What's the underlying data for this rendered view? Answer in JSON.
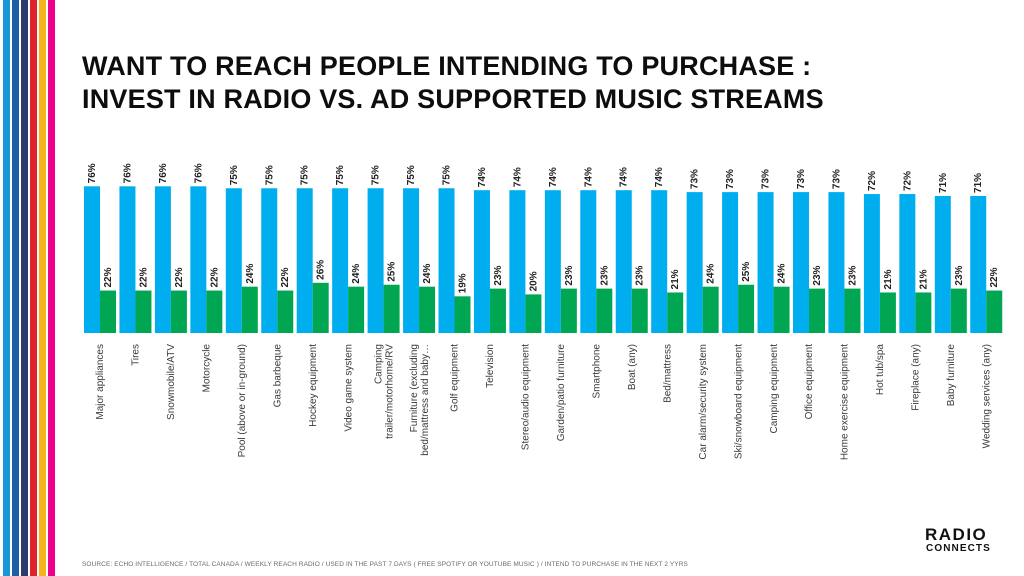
{
  "title": {
    "line1": "WANT TO REACH PEOPLE INTENDING TO PURCHASE :",
    "line2": "INVEST IN RADIO VS. AD SUPPORTED MUSIC STREAMS"
  },
  "source": "SOURCE: ECHO INTELLIGENCE / TOTAL CANADA / WEEKLY REACH RADIO / USED IN THE PAST 7 DAYS ( FREE SPOTIFY OR YOUTUBE MUSIC ) / INTEND TO PURCHASE IN THE NEXT 2 YYRS",
  "logo": {
    "line1": "RADIO",
    "line2": "CONNECTS"
  },
  "colors": {
    "radio": "#00AEEF",
    "streams": "#00A651",
    "stripes": [
      "#1798d6",
      "#1e5fa6",
      "#2e3b6e",
      "#e0232b",
      "#f7b21b",
      "#ec008c"
    ]
  },
  "chart_data": {
    "type": "bar",
    "title": "WANT TO REACH PEOPLE INTENDING TO PURCHASE : INVEST IN RADIO VS. AD SUPPORTED MUSIC STREAMS",
    "xlabel": "",
    "ylabel": "",
    "ylim": [
      0,
      100
    ],
    "grid": false,
    "legend": "none",
    "categories": [
      "Major appliances",
      "Tires",
      "Snowmobile/ATV",
      "Motorcycle",
      "Pool (above or in-ground)",
      "Gas barbeque",
      "Hockey equipment",
      "Video game system",
      [
        "Camping",
        "trailer/motorhome/RV"
      ],
      [
        "Furniture (excluding",
        "bed/mattress and baby…"
      ],
      "Golf equipment",
      "Television",
      "Stereo/audio equipment",
      "Garden/patio furniture",
      "Smartphone",
      "Boat (any)",
      "Bed/mattress",
      "Car alarm/security system",
      "Ski/snowboard equipment",
      "Camping equipment",
      "Office equipment",
      "Home exercise equipment",
      "Hot tub/spa",
      "Fireplace (any)",
      "Baby furniture",
      "Wedding services (any)"
    ],
    "series": [
      {
        "name": "Radio",
        "values": [
          76,
          76,
          76,
          76,
          75,
          75,
          75,
          75,
          75,
          75,
          75,
          74,
          74,
          74,
          74,
          74,
          74,
          73,
          73,
          73,
          73,
          73,
          72,
          72,
          71,
          71
        ],
        "labels": [
          "76%",
          "76%",
          "76%",
          "76%",
          "75%",
          "75%",
          "75%",
          "75%",
          "75%",
          "75%",
          "75%",
          "74%",
          "74%",
          "74%",
          "74%",
          "74%",
          "74%",
          "73%",
          "73%",
          "73%",
          "73%",
          "73%",
          "72%",
          "72%",
          "71%",
          "71%"
        ]
      },
      {
        "name": "Ad supported music streams",
        "values": [
          22,
          22,
          22,
          22,
          24,
          22,
          26,
          24,
          25,
          24,
          19,
          23,
          20,
          23,
          23,
          23,
          21,
          24,
          25,
          24,
          23,
          23,
          21,
          21,
          23,
          22
        ],
        "labels": [
          "22%",
          "22%",
          "22%",
          "22%",
          "24%",
          "22%",
          "26%",
          "24%",
          "25%",
          "24%",
          "19%",
          "23%",
          "20%",
          "23%",
          "23%",
          "23%",
          "21%",
          "24%",
          "25%",
          "24%",
          "23%",
          "23%",
          "21%",
          "21%",
          "23%",
          "22%"
        ]
      }
    ]
  }
}
